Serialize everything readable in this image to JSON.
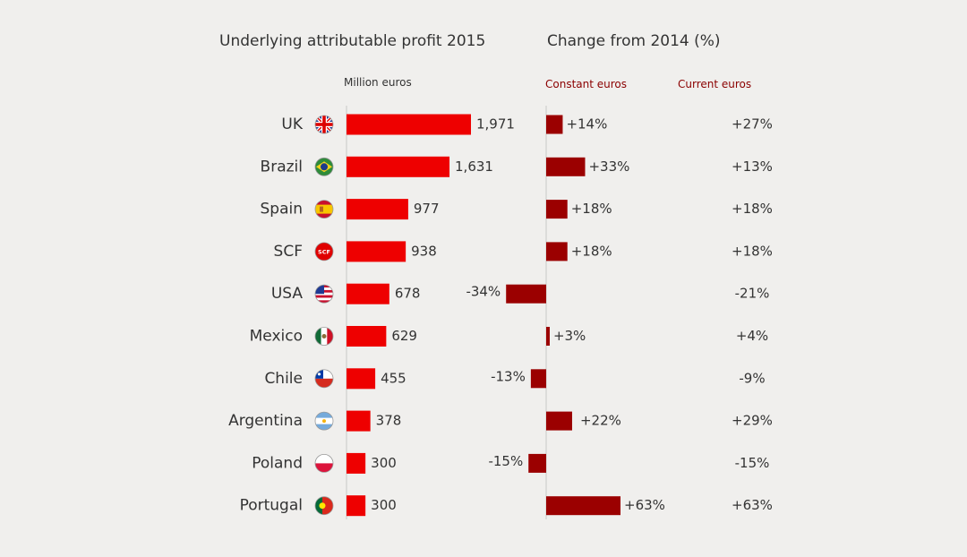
{
  "colors": {
    "background": "#f0efed",
    "profit_bar": "#ee0000",
    "change_bar": "#9b0000",
    "axis": "#c8c8c8",
    "text": "#333333",
    "subheader_red": "#8b0000"
  },
  "headers": {
    "left_title": "Underlying attributable profit 2015",
    "right_title": "Change from 2014 (%)",
    "left_unit": "Million euros",
    "constant": "Constant euros",
    "current": "Current euros"
  },
  "chart_data": [
    {
      "type": "bar",
      "orientation": "horizontal",
      "title": "Underlying attributable profit 2015",
      "unit": "Million euros",
      "categories": [
        "UK",
        "Brazil",
        "Spain",
        "SCF",
        "USA",
        "Mexico",
        "Chile",
        "Argentina",
        "Poland",
        "Portugal"
      ],
      "flags": [
        "uk-flag-icon",
        "brazil-flag-icon",
        "spain-flag-icon",
        "scf-logo-icon",
        "usa-flag-icon",
        "mexico-flag-icon",
        "chile-flag-icon",
        "argentina-flag-icon",
        "poland-flag-icon",
        "portugal-flag-icon"
      ],
      "values": [
        1971,
        1631,
        977,
        938,
        678,
        629,
        455,
        378,
        300,
        300
      ],
      "value_labels": [
        "1,971",
        "1,631",
        "977",
        "938",
        "678",
        "629",
        "455",
        "378",
        "300",
        "300"
      ],
      "xlim": [
        0,
        2000
      ]
    },
    {
      "type": "bar",
      "orientation": "horizontal",
      "title": "Change from 2014 (%)",
      "series_label": "Constant euros",
      "categories": [
        "UK",
        "Brazil",
        "Spain",
        "SCF",
        "USA",
        "Mexico",
        "Chile",
        "Argentina",
        "Poland",
        "Portugal"
      ],
      "values": [
        14,
        33,
        18,
        18,
        -34,
        3,
        -13,
        22,
        -15,
        63
      ],
      "value_labels": [
        "+14%",
        "+33%",
        "+18%",
        "+18%",
        "-34%",
        "+3%",
        "-13%",
        "+22%",
        "-15%",
        "+63%"
      ],
      "xlim": [
        -40,
        70
      ]
    },
    {
      "type": "table",
      "title": "Current euros",
      "categories": [
        "UK",
        "Brazil",
        "Spain",
        "SCF",
        "USA",
        "Mexico",
        "Chile",
        "Argentina",
        "Poland",
        "Portugal"
      ],
      "values": [
        27,
        13,
        18,
        18,
        -21,
        4,
        -9,
        29,
        -15,
        63
      ],
      "value_labels": [
        "+27%",
        "+13%",
        "+18%",
        "+18%",
        "-21%",
        "+4%",
        "-9%",
        "+29%",
        "-15%",
        "+63%"
      ]
    }
  ]
}
